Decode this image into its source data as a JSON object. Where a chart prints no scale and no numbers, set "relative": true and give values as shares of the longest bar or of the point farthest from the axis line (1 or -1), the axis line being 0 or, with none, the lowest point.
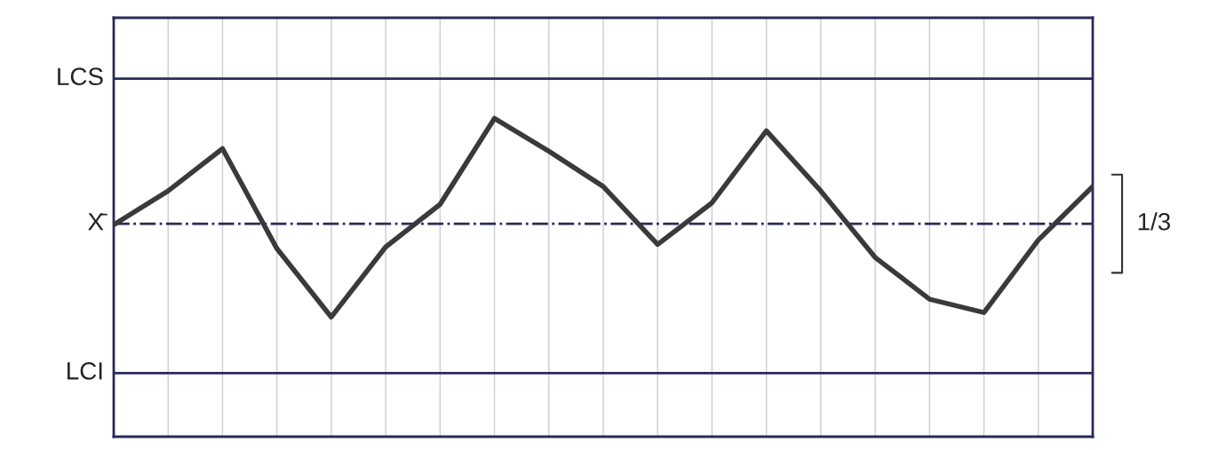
{
  "chart_data": {
    "type": "line",
    "relative": true,
    "categories": [
      null,
      null,
      null,
      null,
      null,
      null,
      null,
      null,
      null,
      null,
      null,
      null,
      null,
      null,
      null,
      null,
      null,
      null,
      null
    ],
    "series": [
      {
        "color": "#3a3a3a",
        "values": [
          0.666,
          0.772,
          0.905,
          0.591,
          0.376,
          0.596,
          0.73,
          1,
          0.897,
          0.786,
          0.604,
          0.735,
          0.961,
          0.772,
          0.563,
          0.432,
          0.39,
          0.618,
          0.786
        ]
      }
    ],
    "ref_lines": [
      {
        "axis": "y",
        "value": 1.125,
        "label": "LCS",
        "color": "#2a2a5a",
        "line_style": "solid"
      },
      {
        "axis": "y",
        "value": 0.669,
        "label": "X̄",
        "color": "#2a2a5a",
        "line_style": "dashdot"
      },
      {
        "axis": "y",
        "value": 0.2,
        "label": "LCI",
        "color": "#2a2a5a",
        "line_style": "solid"
      }
    ],
    "annotations": [
      "1/3"
    ],
    "grid": "x",
    "marker": "none",
    "line_style": "solid"
  }
}
